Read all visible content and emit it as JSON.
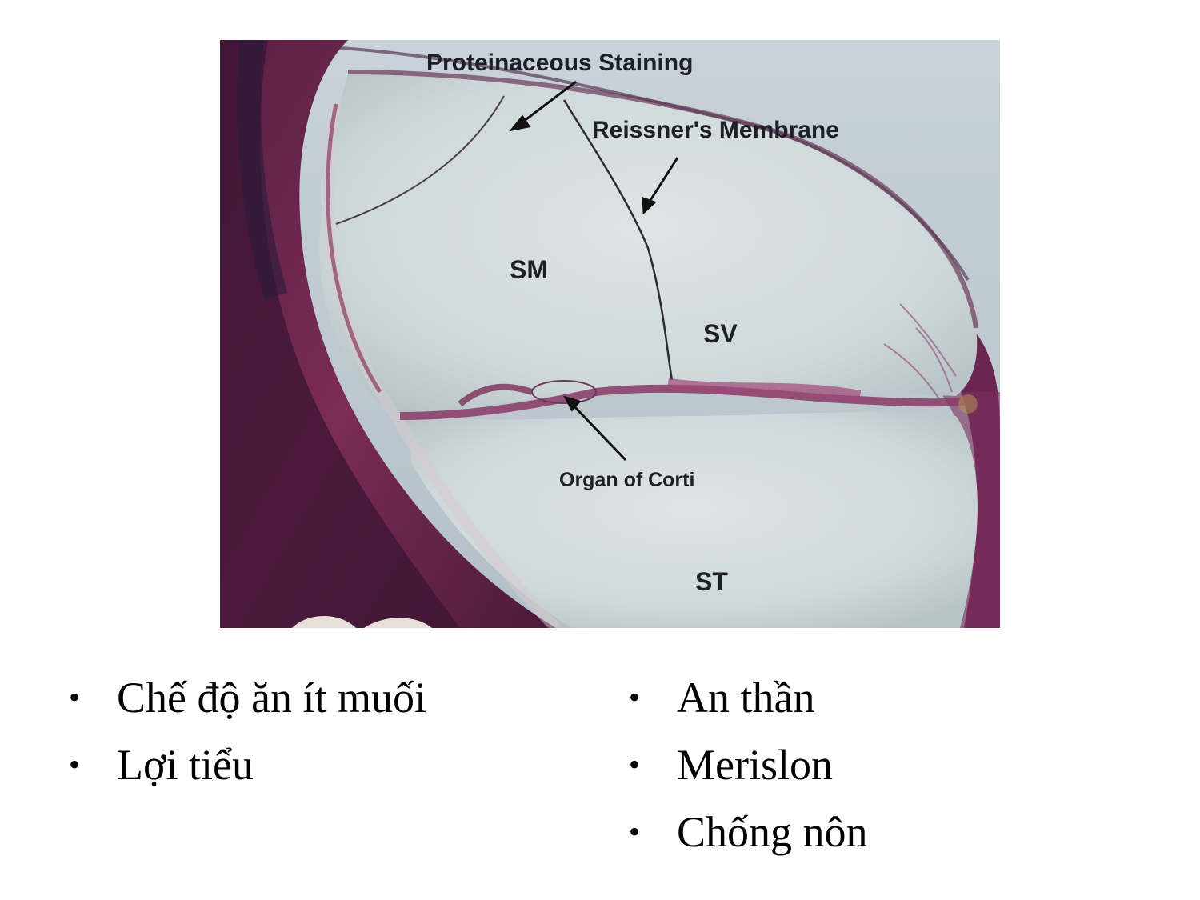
{
  "figure": {
    "labels": {
      "proteinaceous": "Proteinaceous  Staining",
      "reissner": "Reissner's Membrane",
      "sm": "SM",
      "sv": "SV",
      "organ": "Organ of Corti",
      "st": "ST"
    }
  },
  "bullets": {
    "marker": "•",
    "left": [
      "Chế độ ăn ít muối",
      "Lợi tiểu"
    ],
    "right": [
      "An thần",
      "Merislon",
      "Chống nôn"
    ]
  }
}
